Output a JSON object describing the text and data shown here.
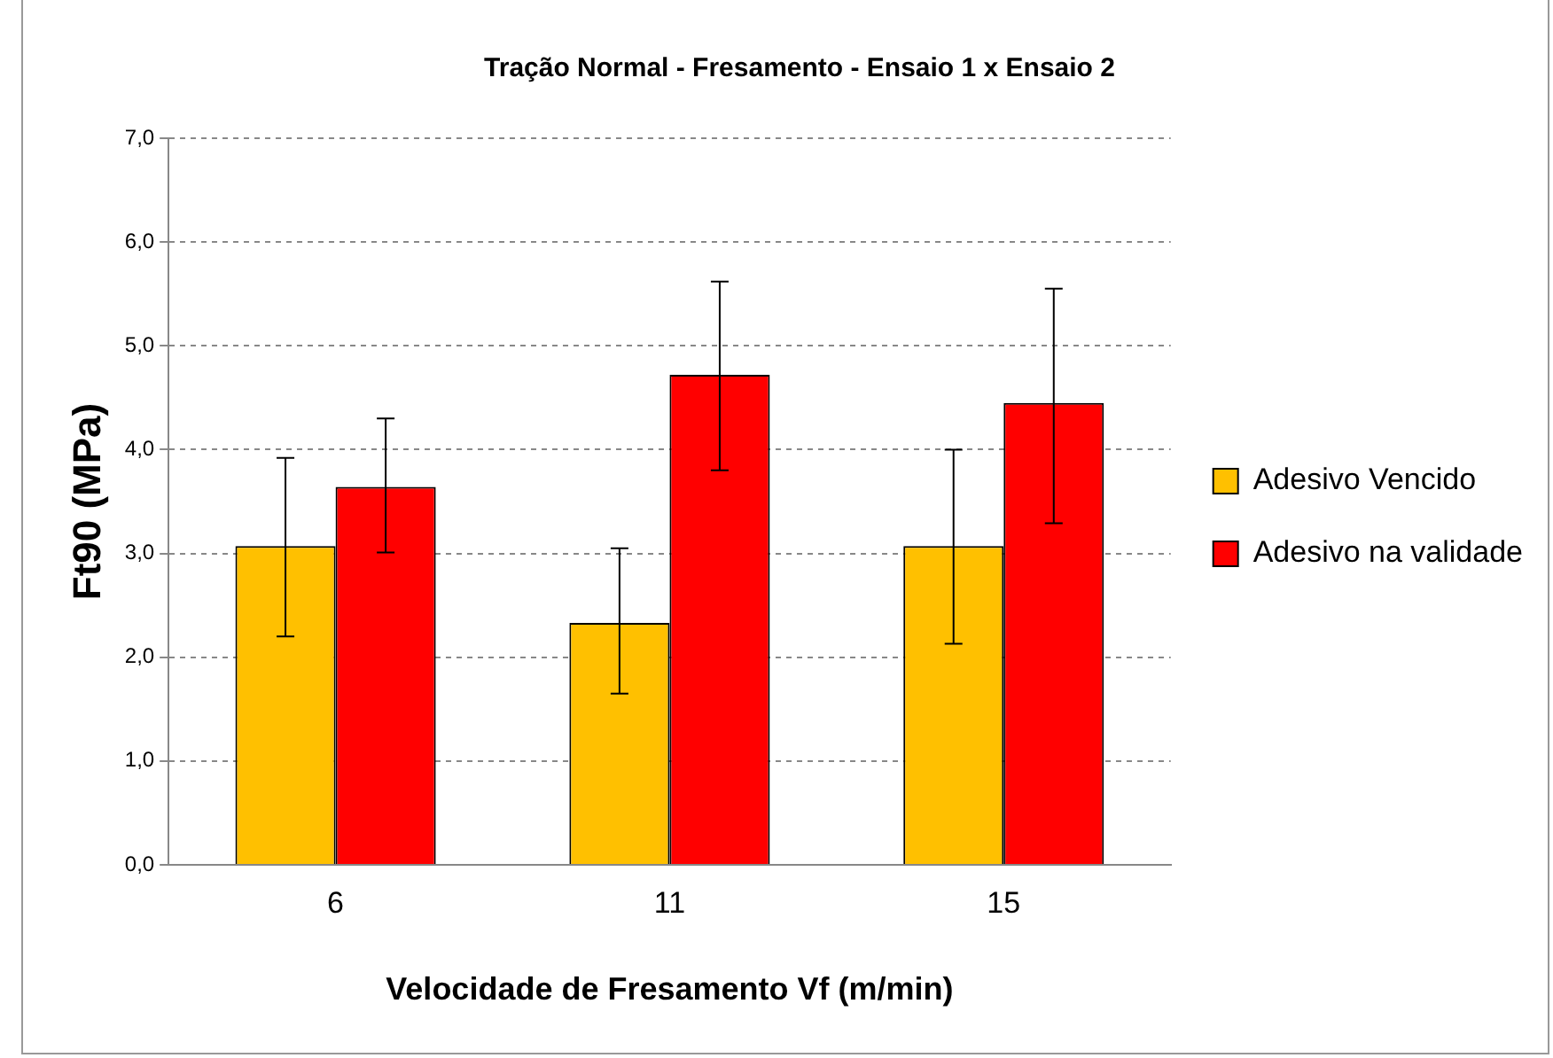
{
  "chart_data": {
    "type": "bar",
    "title": "Tração Normal - Fresamento - Ensaio 1 x Ensaio 2",
    "xlabel": "Velocidade de Fresamento Vf (m/min)",
    "ylabel": "Ft90 (MPa)",
    "categories": [
      "6",
      "11",
      "15"
    ],
    "series": [
      {
        "name": "Adesivo Vencido",
        "color": "#ffc000",
        "values": [
          3.07,
          2.33,
          3.07
        ],
        "errors": [
          [
            2.2,
            3.92
          ],
          [
            1.65,
            3.05
          ],
          [
            2.13,
            4.0
          ]
        ]
      },
      {
        "name": "Adesivo na validade",
        "color": "#ff0000",
        "values": [
          3.64,
          4.72,
          4.45
        ],
        "errors": [
          [
            3.01,
            4.3
          ],
          [
            3.8,
            5.62
          ],
          [
            3.29,
            5.55
          ]
        ]
      }
    ],
    "ylim": [
      0,
      7
    ],
    "yticks": [
      {
        "value": 0,
        "label": "0,0"
      },
      {
        "value": 1,
        "label": "1,0"
      },
      {
        "value": 2,
        "label": "2,0"
      },
      {
        "value": 3,
        "label": "3,0"
      },
      {
        "value": 4,
        "label": "4,0"
      },
      {
        "value": 5,
        "label": "5,0"
      },
      {
        "value": 6,
        "label": "6,0"
      },
      {
        "value": 7,
        "label": "7,0"
      }
    ],
    "grid": "y",
    "legend": "right"
  }
}
